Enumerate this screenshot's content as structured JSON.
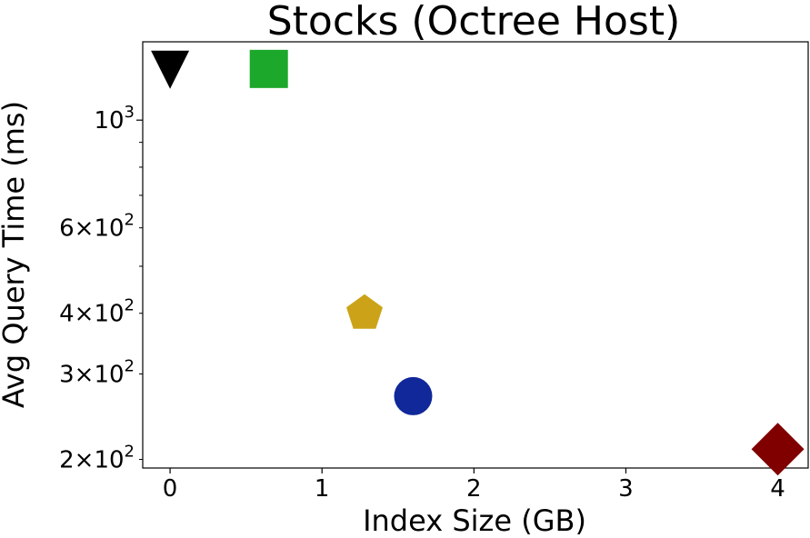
{
  "chart_data": {
    "type": "scatter",
    "title": "Stocks (Octree Host)",
    "xlabel": "Index Size (GB)",
    "ylabel": "Avg Query Time (ms)",
    "xlim": [
      -0.18,
      4.2
    ],
    "ylim": [
      192,
      1450
    ],
    "yscale": "log",
    "grid": false,
    "x_ticks": [
      {
        "value": 0,
        "label": "0"
      },
      {
        "value": 1,
        "label": "1"
      },
      {
        "value": 2,
        "label": "2"
      },
      {
        "value": 3,
        "label": "3"
      },
      {
        "value": 4,
        "label": "4"
      }
    ],
    "y_ticks_major": [
      {
        "value": 1000,
        "base": "10",
        "exp": "3"
      }
    ],
    "y_ticks_minor": [
      {
        "value": 200,
        "mant": "2",
        "base": "10",
        "exp": "2"
      },
      {
        "value": 300,
        "mant": "3",
        "base": "10",
        "exp": "2"
      },
      {
        "value": 400,
        "mant": "4",
        "base": "10",
        "exp": "2"
      },
      {
        "value": 500,
        "mant": "",
        "base": "",
        "exp": ""
      },
      {
        "value": 600,
        "mant": "6",
        "base": "10",
        "exp": "2"
      },
      {
        "value": 700,
        "mant": "",
        "base": "",
        "exp": ""
      },
      {
        "value": 800,
        "mant": "",
        "base": "",
        "exp": ""
      },
      {
        "value": 900,
        "mant": "",
        "base": "",
        "exp": ""
      }
    ],
    "points": [
      {
        "x": 0.0,
        "y": 1270,
        "marker": "triangle-down",
        "color": "#000000"
      },
      {
        "x": 0.65,
        "y": 1275,
        "marker": "square",
        "color": "#1ca82a"
      },
      {
        "x": 1.28,
        "y": 400,
        "marker": "pentagon",
        "color": "#cca318"
      },
      {
        "x": 1.6,
        "y": 270,
        "marker": "circle",
        "color": "#10289a"
      },
      {
        "x": 4.0,
        "y": 210,
        "marker": "diamond",
        "color": "#800000"
      }
    ]
  }
}
